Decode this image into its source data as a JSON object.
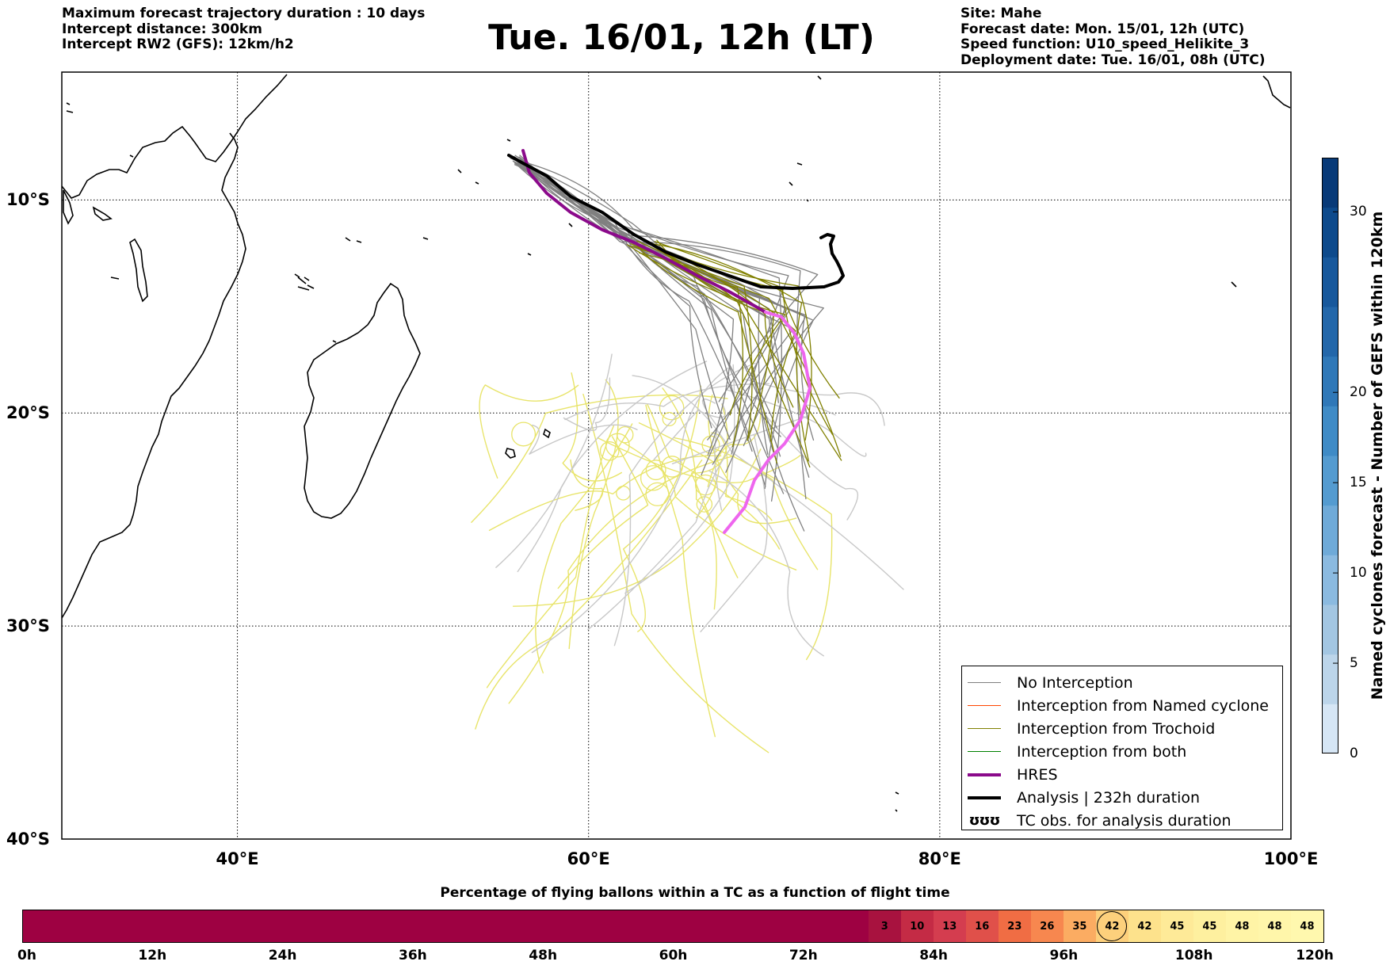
{
  "header_left": [
    "Maximum forecast trajectory duration : 10 days",
    "Intercept distance: 300km",
    "Intercept RW2 (GFS):  12km/h2"
  ],
  "title": "Tue. 16/01, 12h (LT)",
  "header_right": [
    "Site: Mahe",
    "Forecast date: Mon. 15/01, 12h (UTC)",
    "Speed function: U10_speed_Helikite_3",
    "Deployment date: Tue. 16/01, 08h (UTC)"
  ],
  "map": {
    "lon_range": [
      30,
      100
    ],
    "lat_range": [
      -40,
      -4
    ],
    "lon_ticks": [
      {
        "value": 40,
        "label": "40°E"
      },
      {
        "value": 60,
        "label": "60°E"
      },
      {
        "value": 80,
        "label": "80°E"
      },
      {
        "value": 100,
        "label": "100°E"
      }
    ],
    "lat_ticks": [
      {
        "value": -10,
        "label": "10°S"
      },
      {
        "value": -20,
        "label": "20°S"
      },
      {
        "value": -30,
        "label": "30°S"
      },
      {
        "value": -40,
        "label": "40°S"
      }
    ],
    "gridlines": "dotted",
    "colors": {
      "no_interception": "#808080",
      "no_interception_light": "#c8c8c8",
      "named_cyclone": "#ff4500",
      "trochoid": "#808000",
      "trochoid_light": "#e8e46a",
      "both": "#008000",
      "hres": "#8b0a8b",
      "hres_late": "#ee66ee",
      "analysis": "#000000",
      "land_outline": "#000000"
    }
  },
  "legend": {
    "items": [
      {
        "label": "No Interception",
        "style": "thin",
        "color": "#808080"
      },
      {
        "label": "Interception from Named cyclone",
        "style": "thin",
        "color": "#ff4500"
      },
      {
        "label": "Interception from Trochoid",
        "style": "thin",
        "color": "#808000"
      },
      {
        "label": "Interception from both",
        "style": "thin",
        "color": "#008000"
      },
      {
        "label": "HRES",
        "style": "thick",
        "color": "#8b0a8b"
      },
      {
        "label": "Analysis | 232h duration",
        "style": "thick",
        "color": "#000000"
      },
      {
        "label": "TC obs. for analysis duration",
        "style": "symbol",
        "symbol": "ʊʊʊ"
      }
    ]
  },
  "colorbar": {
    "label": "Named cyclones forecast - Number of GEFS within 120km",
    "min": 0,
    "max": 33,
    "ticks": [
      0,
      5,
      10,
      15,
      20,
      30
    ],
    "colors": [
      "#d6e6f5",
      "#bcd5ea",
      "#a3c6e2",
      "#8bbae0",
      "#6faad8",
      "#549bd0",
      "#3f8bc6",
      "#2f78b8",
      "#2367aa",
      "#17589c",
      "#0d4a8c",
      "#083a78"
    ]
  },
  "percentage_bar": {
    "title": "Percentage of flying ballons within a TC as a function of flight time",
    "max_hours": 120,
    "tick_labels": [
      "0h",
      "12h",
      "24h",
      "36h",
      "48h",
      "60h",
      "72h",
      "84h",
      "96h",
      "108h",
      "120h"
    ],
    "tick_hours": [
      0,
      12,
      24,
      36,
      48,
      60,
      72,
      84,
      96,
      108,
      120
    ],
    "cells": [
      {
        "start": 78,
        "end": 81,
        "value": "3",
        "color": "#a8123f"
      },
      {
        "start": 81,
        "end": 84,
        "value": "10",
        "color": "#c42b45"
      },
      {
        "start": 84,
        "end": 87,
        "value": "13",
        "color": "#d43d4f"
      },
      {
        "start": 87,
        "end": 90,
        "value": "16",
        "color": "#e0504a"
      },
      {
        "start": 90,
        "end": 93,
        "value": "23",
        "color": "#f06d44"
      },
      {
        "start": 93,
        "end": 96,
        "value": "26",
        "color": "#f7874f"
      },
      {
        "start": 96,
        "end": 99,
        "value": "35",
        "color": "#fbac62"
      },
      {
        "start": 99,
        "end": 102,
        "value": "42",
        "color": "#fdd07c",
        "current": true
      },
      {
        "start": 102,
        "end": 105,
        "value": "42",
        "color": "#fde28c"
      },
      {
        "start": 105,
        "end": 108,
        "value": "45",
        "color": "#feea98"
      },
      {
        "start": 108,
        "end": 111,
        "value": "45",
        "color": "#fef09f"
      },
      {
        "start": 111,
        "end": 114,
        "value": "48",
        "color": "#fff4a6"
      },
      {
        "start": 114,
        "end": 117,
        "value": "48",
        "color": "#fff6aa"
      },
      {
        "start": 117,
        "end": 120,
        "value": "48",
        "color": "#fff8ae"
      }
    ],
    "base_color": "#9e0142"
  }
}
